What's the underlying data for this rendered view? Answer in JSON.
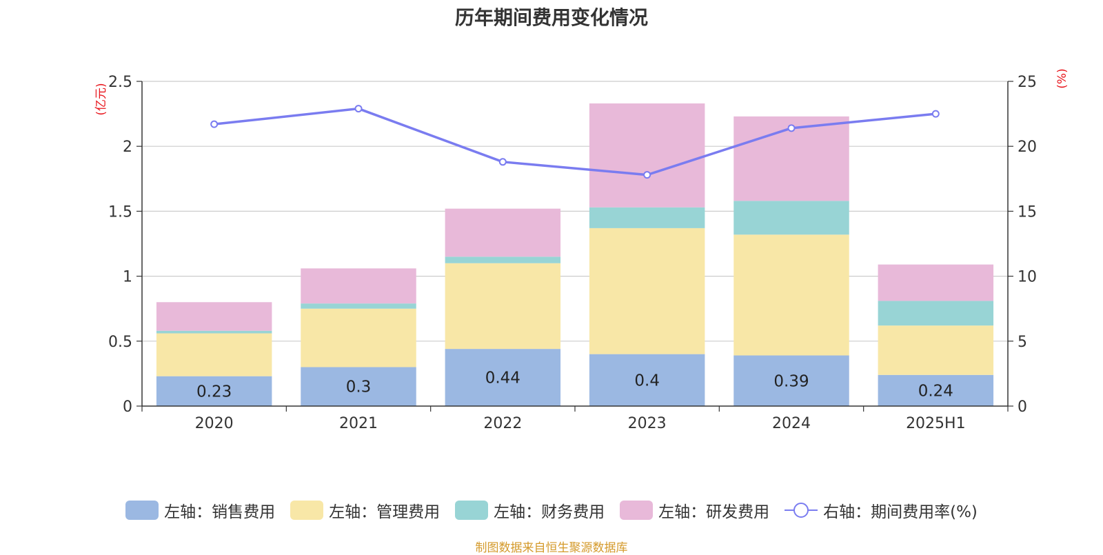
{
  "chart_data": {
    "type": "bar",
    "stacked": true,
    "title": "历年期间费用变化情况",
    "categories": [
      "2020",
      "2021",
      "2022",
      "2023",
      "2024",
      "2025H1"
    ],
    "left_axis": {
      "unit_label": "(亿元)",
      "ylim": [
        0,
        2.5
      ],
      "ticks": [
        "0",
        "0.5",
        "1",
        "1.5",
        "2",
        "2.5"
      ]
    },
    "right_axis": {
      "unit_label": "(%)",
      "ylim": [
        0,
        25
      ],
      "ticks": [
        "0",
        "5",
        "10",
        "15",
        "20",
        "25"
      ]
    },
    "series": [
      {
        "name": "左轴：销售费用",
        "axis": "left",
        "type": "bar",
        "color": "#9bb8e2",
        "values": [
          0.23,
          0.3,
          0.44,
          0.4,
          0.39,
          0.24
        ],
        "labels": [
          "0.23",
          "0.3",
          "0.44",
          "0.4",
          "0.39",
          "0.24"
        ]
      },
      {
        "name": "左轴：管理费用",
        "axis": "left",
        "type": "bar",
        "color": "#f8e7a7",
        "values": [
          0.33,
          0.45,
          0.66,
          0.97,
          0.93,
          0.38
        ]
      },
      {
        "name": "左轴：财务费用",
        "axis": "left",
        "type": "bar",
        "color": "#98d4d5",
        "values": [
          0.02,
          0.04,
          0.05,
          0.16,
          0.26,
          0.19
        ]
      },
      {
        "name": "左轴：研发费用",
        "axis": "left",
        "type": "bar",
        "color": "#e8b9d9",
        "values": [
          0.22,
          0.27,
          0.37,
          0.8,
          0.65,
          0.28
        ]
      },
      {
        "name": "右轴：期间费用率(%)",
        "axis": "right",
        "type": "line",
        "color": "#7a7cf0",
        "values": [
          21.7,
          22.9,
          18.8,
          17.8,
          21.4,
          22.5
        ]
      }
    ],
    "grid": true,
    "legend_position": "bottom"
  },
  "source_note": "制图数据来自恒生聚源数据库",
  "colors": {
    "left_unit": "#e8141b",
    "right_unit": "#e8141b",
    "grid": "#cccccc",
    "axis": "#333333"
  }
}
